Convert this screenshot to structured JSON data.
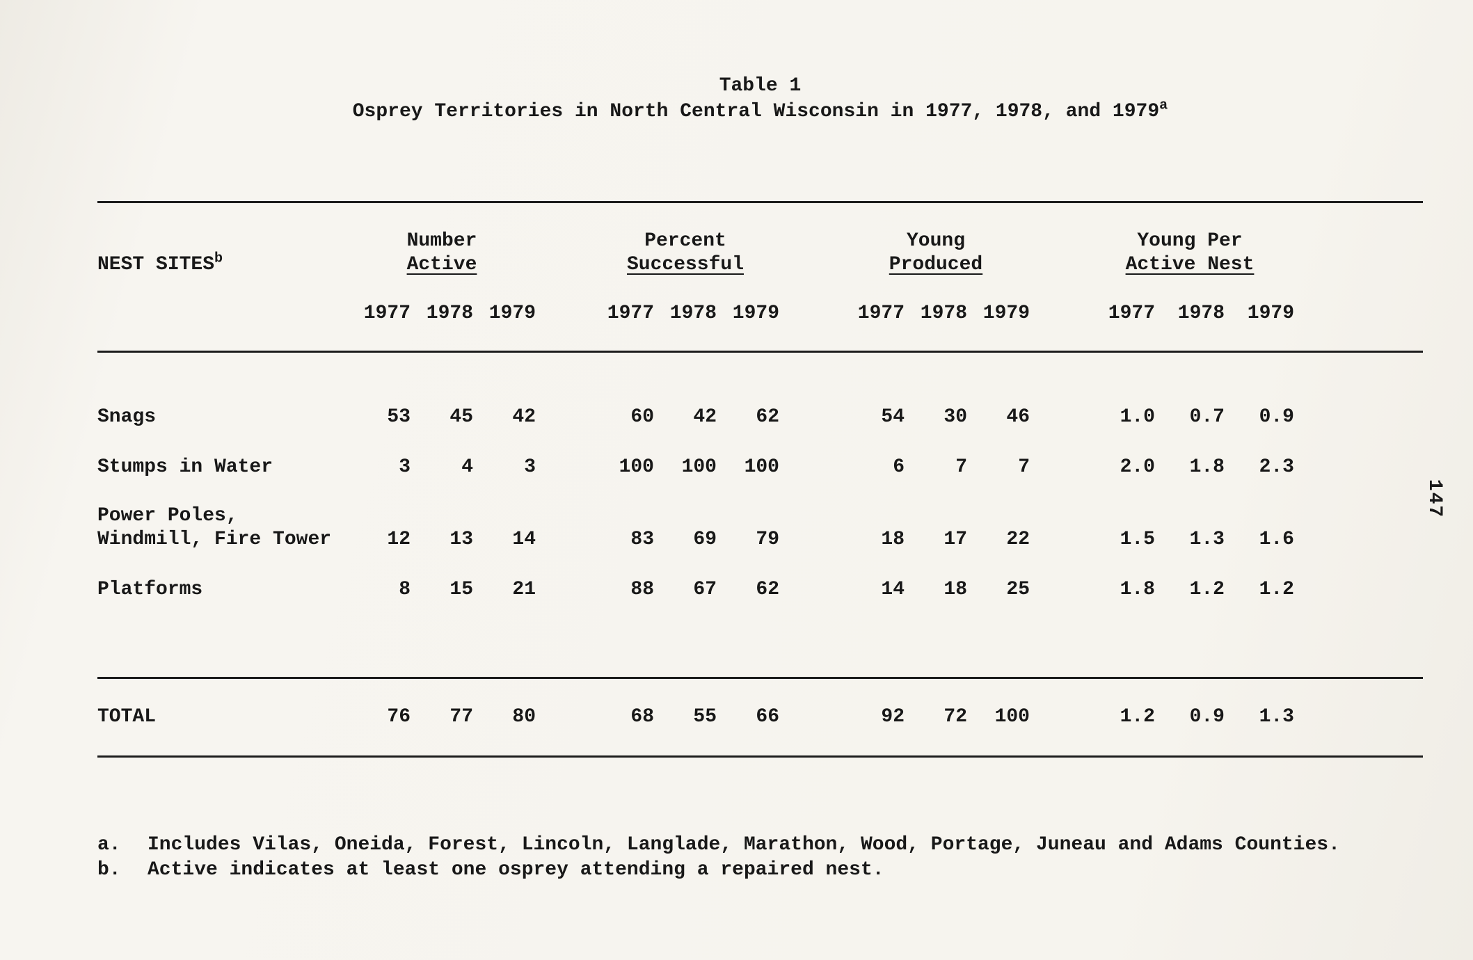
{
  "page": {
    "title": "Table 1",
    "subtitle_main": "Osprey Territories in North Central Wisconsin in 1977, 1978, and 1979",
    "subtitle_sup": "a",
    "page_number": "147"
  },
  "table": {
    "nest_sites_label": "NEST SITES",
    "nest_sites_sup": "b",
    "groups": [
      {
        "line1": "Number",
        "line2": "Active"
      },
      {
        "line1": "Percent",
        "line2": "Successful"
      },
      {
        "line1": "Young",
        "line2": "Produced"
      },
      {
        "line1": "Young Per",
        "line2": "Active Nest"
      }
    ],
    "years": [
      "1977",
      "1978",
      "1979"
    ],
    "rows": [
      {
        "label": "Snags",
        "values": [
          [
            "53",
            "45",
            "42"
          ],
          [
            "60",
            "42",
            "62"
          ],
          [
            "54",
            "30",
            "46"
          ],
          [
            "1.0",
            "0.7",
            "0.9"
          ]
        ]
      },
      {
        "label": "Stumps in Water",
        "values": [
          [
            "3",
            "4",
            "3"
          ],
          [
            "100",
            "100",
            "100"
          ],
          [
            "6",
            "7",
            "7"
          ],
          [
            "2.0",
            "1.8",
            "2.3"
          ]
        ]
      },
      {
        "label": "Power Poles,\nWindmill, Fire Tower",
        "values": [
          [
            "12",
            "13",
            "14"
          ],
          [
            "83",
            "69",
            "79"
          ],
          [
            "18",
            "17",
            "22"
          ],
          [
            "1.5",
            "1.3",
            "1.6"
          ]
        ]
      },
      {
        "label": "Platforms",
        "values": [
          [
            "8",
            "15",
            "21"
          ],
          [
            "88",
            "67",
            "62"
          ],
          [
            "14",
            "18",
            "25"
          ],
          [
            "1.8",
            "1.2",
            "1.2"
          ]
        ]
      }
    ],
    "total": {
      "label": "TOTAL",
      "values": [
        [
          "76",
          "77",
          "80"
        ],
        [
          "68",
          "55",
          "66"
        ],
        [
          "92",
          "72",
          "100"
        ],
        [
          "1.2",
          "0.9",
          "1.3"
        ]
      ]
    }
  },
  "footnotes": [
    {
      "marker": "a.",
      "text": "Includes Vilas, Oneida, Forest, Lincoln, Langlade, Marathon, Wood, Portage, Juneau and Adams Counties."
    },
    {
      "marker": "b.",
      "text": "Active indicates at least one osprey attending a repaired nest."
    }
  ],
  "colors": {
    "paper": "#f6f4ef",
    "ink": "#181818"
  }
}
